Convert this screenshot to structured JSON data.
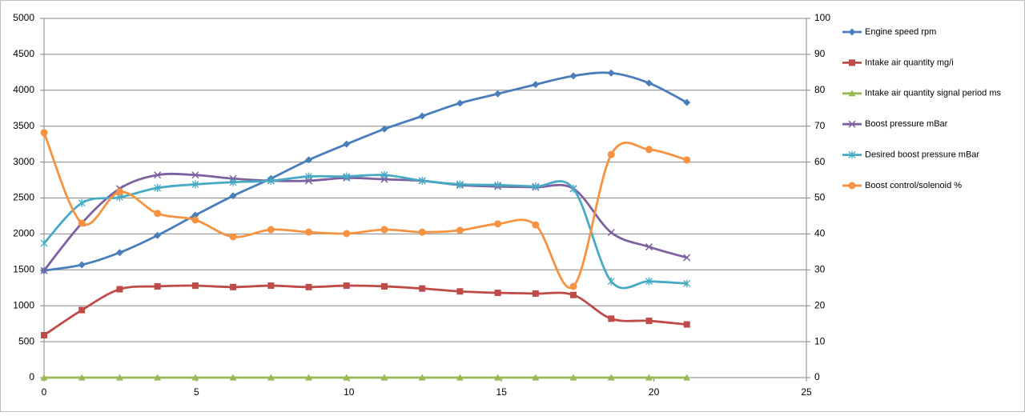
{
  "chart_data": {
    "type": "line",
    "x": [
      0,
      1.24,
      2.48,
      3.72,
      4.96,
      6.2,
      7.44,
      8.68,
      9.92,
      11.16,
      12.4,
      13.64,
      14.88,
      16.12,
      17.36,
      18.6,
      19.84,
      21.08
    ],
    "xlim": [
      0,
      25
    ],
    "xticks": [
      0,
      5,
      10,
      15,
      20,
      25
    ],
    "ylim": [
      0,
      5000
    ],
    "yticks": [
      0,
      500,
      1000,
      1500,
      2000,
      2500,
      3000,
      3500,
      4000,
      4500,
      5000
    ],
    "y2lim": [
      0,
      100
    ],
    "y2ticks": [
      0,
      10,
      20,
      30,
      40,
      50,
      60,
      70,
      80,
      90,
      100
    ],
    "grid": true,
    "legend": "right",
    "series": [
      {
        "name": "Engine speed rpm",
        "color": "#4a7ebb",
        "marker": "diamond",
        "values": [
          1490,
          1570,
          1740,
          1980,
          2260,
          2530,
          2770,
          3030,
          3250,
          3460,
          3640,
          3820,
          3950,
          4080,
          4200,
          4240,
          4100,
          3830
        ]
      },
      {
        "name": "Intake air quantity mg/i",
        "color": "#be4b48",
        "marker": "square",
        "values": [
          590,
          940,
          1230,
          1270,
          1280,
          1260,
          1280,
          1260,
          1280,
          1270,
          1240,
          1200,
          1180,
          1170,
          1150,
          820,
          790,
          740
        ]
      },
      {
        "name": "Intake air quantity signal period ms",
        "color": "#98b954",
        "marker": "triangle",
        "values": [
          0,
          0,
          0,
          0,
          0,
          0,
          0,
          0,
          0,
          0,
          0,
          0,
          0,
          0,
          0,
          0,
          0,
          0
        ]
      },
      {
        "name": "Boost pressure mBar",
        "color": "#7d60a0",
        "marker": "x",
        "values": [
          1490,
          2150,
          2630,
          2820,
          2820,
          2770,
          2740,
          2740,
          2780,
          2760,
          2740,
          2680,
          2660,
          2650,
          2630,
          2020,
          1820,
          1670
        ]
      },
      {
        "name": "Desired boost pressure mBar",
        "color": "#46aac5",
        "marker": "star",
        "values": [
          1870,
          2430,
          2510,
          2640,
          2690,
          2720,
          2740,
          2800,
          2800,
          2820,
          2740,
          2690,
          2680,
          2660,
          2630,
          1340,
          1340,
          1310
        ]
      },
      {
        "name": "Boost control/solenoid %",
        "color": "#f69240",
        "marker": "circle",
        "axis": "y2",
        "values": [
          68.2,
          43.0,
          51.7,
          45.7,
          43.9,
          39.2,
          41.2,
          40.5,
          40.1,
          41.2,
          40.5,
          41.0,
          42.8,
          42.5,
          25.4,
          62.1,
          63.5,
          60.6
        ]
      }
    ]
  }
}
